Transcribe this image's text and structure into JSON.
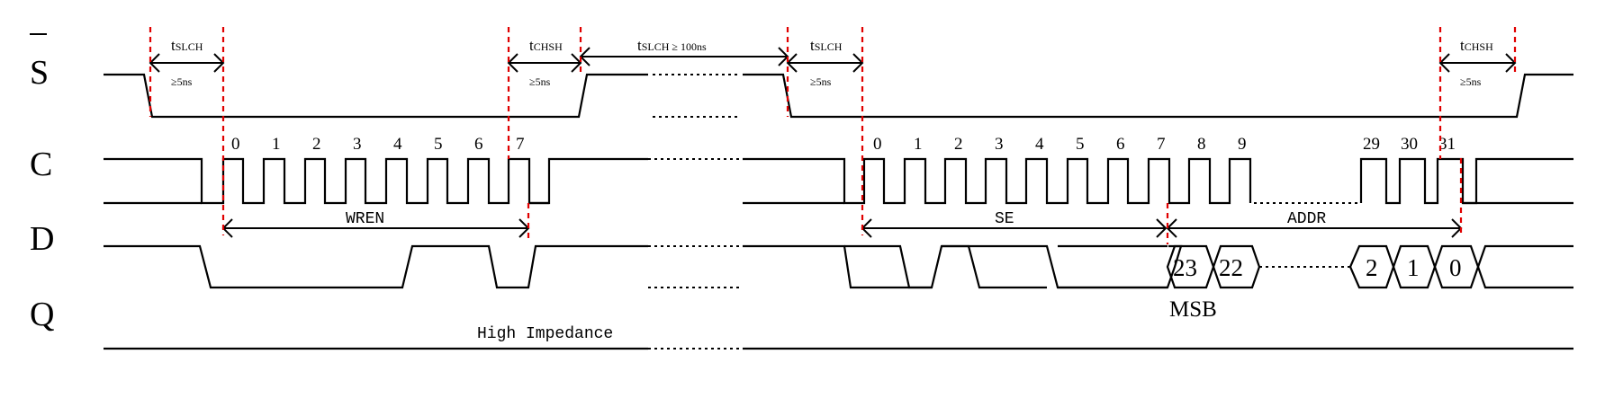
{
  "signals": {
    "s": "S",
    "c": "C",
    "d": "D",
    "q": "Q"
  },
  "timing": {
    "t1_main": "t",
    "t1_sub": "SLCH",
    "t1_min": "≥5ns",
    "t2_main": "t",
    "t2_sub": "CHSH",
    "t2_min": "≥5ns",
    "t3_main": "t",
    "t3_sub": "SLCH",
    "t3_suffix": " ≥ 100ns",
    "t4_main": "t",
    "t4_sub": "SLCH",
    "t4_min": "≥5ns",
    "t5_main": "t",
    "t5_sub": "CHSH",
    "t5_min": "≥5ns"
  },
  "clock_numbers_a": [
    "0",
    "1",
    "2",
    "3",
    "4",
    "5",
    "6",
    "7"
  ],
  "clock_numbers_b": [
    "0",
    "1",
    "2",
    "3",
    "4",
    "5",
    "6",
    "7",
    "8",
    "9",
    "29",
    "30",
    "31"
  ],
  "phases": {
    "wren": "WREN",
    "se": "SE",
    "addr": "ADDR"
  },
  "bus_values": [
    "23",
    "22",
    "2",
    "1",
    "0"
  ],
  "msb_label": "MSB",
  "q_label": "High Impedance"
}
